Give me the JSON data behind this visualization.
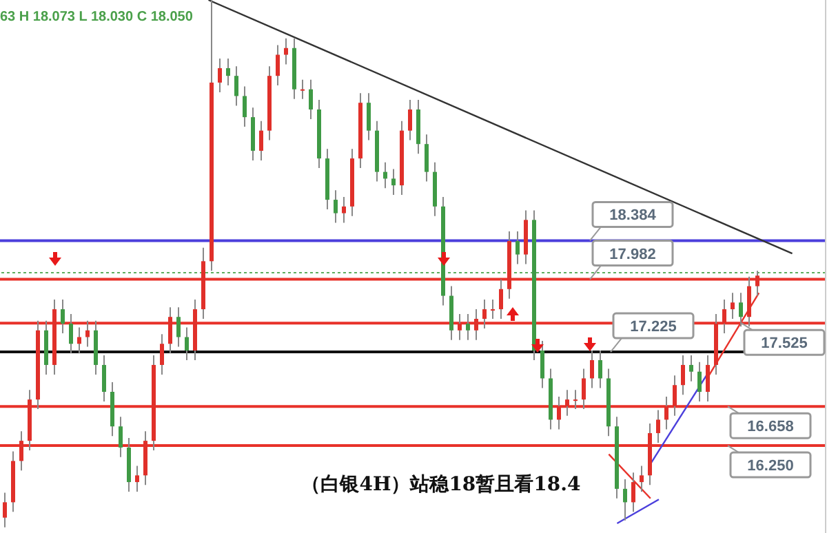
{
  "chart_data": {
    "type": "candlestick",
    "tick_labels": false,
    "ylim": [
      15.34,
      20.89
    ],
    "annotations": [
      "63 H 18.073 L 18.030 C 18.050",
      "（白银4H）站稳18暂且看18.4"
    ],
    "categories": [
      null,
      null,
      null,
      null,
      null,
      null,
      null,
      null,
      null,
      null,
      null,
      null,
      null,
      null,
      null,
      null,
      null,
      null,
      null,
      null,
      null,
      null,
      null,
      null,
      null,
      null,
      null,
      null,
      null,
      null,
      null,
      null,
      null,
      null,
      null,
      null,
      null,
      null,
      null,
      null,
      null,
      null,
      null,
      null,
      null,
      null,
      null,
      null,
      null,
      null,
      null,
      null,
      null,
      null,
      null,
      null,
      null,
      null,
      null,
      null,
      null,
      null,
      null,
      null,
      null,
      null,
      null,
      null,
      null,
      null,
      null,
      null,
      null,
      null,
      null,
      null,
      null,
      null,
      null,
      null,
      null,
      null,
      null,
      null,
      null,
      null,
      null,
      null,
      null,
      null,
      null,
      null,
      null,
      null,
      null,
      null,
      null,
      null,
      null,
      null
    ],
    "ohlc": [
      [
        15.5,
        15.76,
        15.4,
        15.66
      ],
      [
        15.66,
        16.19,
        15.56,
        16.09
      ],
      [
        16.09,
        16.4,
        15.99,
        16.3
      ],
      [
        16.3,
        16.83,
        16.2,
        16.73
      ],
      [
        16.73,
        17.55,
        16.63,
        17.45
      ],
      [
        17.45,
        17.55,
        16.99,
        17.09
      ],
      [
        17.09,
        17.77,
        16.99,
        17.67
      ],
      [
        17.67,
        17.77,
        17.42,
        17.52
      ],
      [
        17.52,
        17.62,
        17.21,
        17.31
      ],
      [
        17.31,
        17.48,
        17.21,
        17.38
      ],
      [
        17.38,
        17.55,
        17.28,
        17.45
      ],
      [
        17.45,
        17.55,
        16.99,
        17.09
      ],
      [
        17.09,
        17.19,
        16.71,
        16.81
      ],
      [
        16.81,
        16.91,
        16.35,
        16.45
      ],
      [
        16.45,
        16.55,
        16.13,
        16.23
      ],
      [
        16.23,
        16.33,
        15.77,
        15.87
      ],
      [
        15.87,
        16.04,
        15.77,
        15.94
      ],
      [
        15.94,
        16.4,
        15.84,
        16.3
      ],
      [
        16.3,
        17.19,
        16.2,
        17.09
      ],
      [
        17.09,
        17.41,
        16.99,
        17.31
      ],
      [
        17.31,
        17.69,
        17.21,
        17.59
      ],
      [
        17.59,
        17.69,
        17.28,
        17.38
      ],
      [
        17.38,
        17.48,
        17.14,
        17.24
      ],
      [
        17.24,
        17.77,
        17.14,
        17.67
      ],
      [
        17.67,
        18.31,
        17.57,
        18.17
      ],
      [
        18.17,
        20.89,
        18.07,
        20.03
      ],
      [
        20.03,
        20.28,
        19.93,
        20.18
      ],
      [
        20.18,
        20.28,
        20.0,
        20.1
      ],
      [
        20.1,
        20.2,
        19.79,
        19.89
      ],
      [
        19.89,
        19.99,
        19.57,
        19.67
      ],
      [
        19.67,
        19.77,
        19.22,
        19.32
      ],
      [
        19.32,
        19.63,
        19.22,
        19.53
      ],
      [
        19.53,
        20.2,
        19.43,
        20.1
      ],
      [
        20.1,
        20.42,
        20.0,
        20.32
      ],
      [
        20.32,
        20.49,
        20.22,
        20.39
      ],
      [
        20.39,
        20.49,
        19.86,
        19.96
      ],
      [
        19.96,
        20.06,
        19.86,
        19.96
      ],
      [
        19.96,
        20.06,
        19.65,
        19.75
      ],
      [
        19.75,
        19.85,
        19.14,
        19.24
      ],
      [
        19.24,
        19.34,
        18.71,
        18.81
      ],
      [
        18.81,
        18.91,
        18.57,
        18.67
      ],
      [
        18.67,
        18.84,
        18.57,
        18.74
      ],
      [
        18.74,
        19.34,
        18.64,
        19.24
      ],
      [
        19.24,
        19.92,
        19.14,
        19.82
      ],
      [
        19.82,
        19.92,
        19.43,
        19.53
      ],
      [
        19.53,
        19.63,
        19.0,
        19.1
      ],
      [
        19.1,
        19.2,
        18.93,
        19.03
      ],
      [
        19.03,
        19.13,
        18.86,
        18.96
      ],
      [
        18.96,
        19.63,
        18.86,
        19.53
      ],
      [
        19.53,
        19.85,
        19.43,
        19.75
      ],
      [
        19.75,
        19.85,
        19.29,
        19.39
      ],
      [
        19.39,
        19.49,
        19.0,
        19.1
      ],
      [
        19.1,
        19.2,
        18.64,
        18.74
      ],
      [
        18.74,
        18.84,
        17.71,
        17.81
      ],
      [
        17.81,
        17.91,
        17.35,
        17.45
      ],
      [
        17.45,
        17.62,
        17.35,
        17.52
      ],
      [
        17.52,
        17.62,
        17.35,
        17.45
      ],
      [
        17.45,
        17.67,
        17.35,
        17.57
      ],
      [
        17.57,
        17.77,
        17.47,
        17.67
      ],
      [
        17.67,
        17.77,
        17.57,
        17.67
      ],
      [
        17.67,
        17.98,
        17.57,
        17.88
      ],
      [
        17.88,
        18.48,
        17.78,
        18.38
      ],
      [
        18.38,
        18.48,
        18.14,
        18.24
      ],
      [
        18.24,
        18.7,
        18.14,
        18.6
      ],
      [
        18.6,
        18.7,
        17.14,
        17.24
      ],
      [
        17.24,
        17.34,
        16.85,
        16.95
      ],
      [
        16.95,
        17.05,
        16.42,
        16.52
      ],
      [
        16.52,
        16.76,
        16.42,
        16.66
      ],
      [
        16.66,
        16.83,
        16.56,
        16.73
      ],
      [
        16.73,
        16.83,
        16.63,
        16.73
      ],
      [
        16.73,
        17.05,
        16.63,
        16.95
      ],
      [
        16.95,
        17.24,
        16.85,
        17.14
      ],
      [
        17.14,
        17.24,
        16.85,
        16.95
      ],
      [
        16.95,
        17.05,
        16.35,
        16.45
      ],
      [
        16.45,
        16.55,
        15.7,
        15.8
      ],
      [
        15.8,
        15.9,
        15.47,
        15.66
      ],
      [
        15.66,
        15.97,
        15.56,
        15.87
      ],
      [
        15.87,
        16.04,
        15.77,
        15.94
      ],
      [
        15.94,
        16.48,
        15.84,
        16.38
      ],
      [
        16.38,
        16.62,
        16.28,
        16.52
      ],
      [
        16.52,
        16.76,
        16.42,
        16.66
      ],
      [
        16.66,
        16.98,
        16.56,
        16.88
      ],
      [
        16.88,
        17.19,
        16.78,
        17.09
      ],
      [
        17.09,
        17.19,
        16.92,
        17.02
      ],
      [
        17.02,
        17.12,
        16.71,
        16.81
      ],
      [
        16.81,
        17.19,
        16.71,
        17.09
      ],
      [
        17.09,
        17.62,
        16.99,
        17.52
      ],
      [
        17.52,
        17.77,
        17.42,
        17.67
      ],
      [
        17.67,
        17.84,
        17.57,
        17.74
      ],
      [
        17.74,
        17.84,
        17.49,
        17.59
      ],
      [
        17.59,
        18.01,
        17.49,
        17.91
      ],
      [
        17.91,
        18.07,
        17.81,
        18.02
      ],
      null,
      null,
      null,
      null,
      null,
      null,
      null,
      null
    ],
    "series": [
      {
        "type": "line",
        "color": "#333333",
        "values": [
          null,
          null,
          null,
          null,
          null,
          null,
          null,
          null,
          null,
          null,
          null,
          null,
          null,
          null,
          null,
          null,
          null,
          null,
          null,
          null,
          null,
          null,
          null,
          null,
          null,
          20.89,
          null,
          null,
          null,
          null,
          null,
          null,
          null,
          null,
          null,
          null,
          null,
          null,
          null,
          null,
          null,
          null,
          null,
          null,
          null,
          null,
          null,
          null,
          null,
          null,
          null,
          null,
          null,
          null,
          null,
          null,
          null,
          null,
          null,
          null,
          null,
          null,
          null,
          null,
          null,
          null,
          null,
          null,
          null,
          null,
          null,
          null,
          null,
          null,
          null,
          null,
          null,
          null,
          null,
          null,
          null,
          null,
          null,
          null,
          null,
          null,
          null,
          null,
          null,
          null,
          null,
          null,
          null,
          null,
          null,
          18.25,
          null,
          null,
          null,
          null
        ]
      },
      {
        "type": "line",
        "color": "#4b3fdc",
        "values": [
          null,
          null,
          null,
          null,
          null,
          null,
          null,
          null,
          null,
          null,
          null,
          null,
          null,
          null,
          null,
          null,
          null,
          null,
          null,
          null,
          null,
          null,
          null,
          null,
          null,
          null,
          null,
          null,
          null,
          null,
          null,
          null,
          null,
          null,
          null,
          null,
          null,
          null,
          null,
          null,
          null,
          null,
          null,
          null,
          null,
          null,
          null,
          null,
          null,
          null,
          null,
          null,
          null,
          null,
          null,
          null,
          null,
          null,
          null,
          null,
          null,
          null,
          null,
          null,
          null,
          null,
          null,
          null,
          null,
          null,
          null,
          null,
          null,
          null,
          15.44,
          null,
          null,
          null,
          null,
          15.69,
          null,
          null,
          null,
          null,
          null,
          null,
          null,
          null,
          null,
          null,
          null,
          null,
          null,
          null,
          null,
          null,
          null,
          null,
          null,
          null
        ]
      },
      {
        "type": "line",
        "color": "#4b3fdc",
        "values": [
          null,
          null,
          null,
          null,
          null,
          null,
          null,
          null,
          null,
          null,
          null,
          null,
          null,
          null,
          null,
          null,
          null,
          null,
          null,
          null,
          null,
          null,
          null,
          null,
          null,
          null,
          null,
          null,
          null,
          null,
          null,
          null,
          null,
          null,
          null,
          null,
          null,
          null,
          null,
          null,
          null,
          null,
          null,
          null,
          null,
          null,
          null,
          null,
          null,
          null,
          null,
          null,
          null,
          null,
          null,
          null,
          null,
          null,
          null,
          null,
          null,
          null,
          null,
          null,
          null,
          null,
          null,
          null,
          null,
          null,
          null,
          null,
          null,
          null,
          null,
          null,
          null,
          null,
          16.06,
          null,
          null,
          null,
          null,
          null,
          null,
          17.02,
          null,
          null,
          null,
          null,
          null,
          null,
          null,
          null,
          null,
          null,
          null,
          null,
          null,
          null
        ]
      },
      {
        "type": "line",
        "color": "#e8322a",
        "values": [
          null,
          null,
          null,
          null,
          null,
          null,
          null,
          null,
          null,
          null,
          null,
          null,
          null,
          null,
          null,
          null,
          null,
          null,
          null,
          null,
          null,
          null,
          null,
          null,
          null,
          null,
          null,
          null,
          null,
          null,
          null,
          null,
          null,
          null,
          null,
          null,
          null,
          null,
          null,
          null,
          null,
          null,
          null,
          null,
          null,
          null,
          null,
          null,
          null,
          null,
          null,
          null,
          null,
          null,
          null,
          null,
          null,
          null,
          null,
          null,
          null,
          null,
          null,
          null,
          null,
          null,
          null,
          null,
          null,
          null,
          null,
          null,
          null,
          null,
          null,
          null,
          null,
          null,
          null,
          null,
          null,
          null,
          null,
          null,
          null,
          16.98,
          null,
          null,
          null,
          null,
          null,
          17.84,
          null,
          null,
          null,
          null,
          null,
          null,
          null,
          null
        ]
      },
      {
        "type": "line",
        "color": "#e8322a",
        "values": [
          null,
          null,
          null,
          null,
          null,
          null,
          null,
          null,
          null,
          null,
          null,
          null,
          null,
          null,
          null,
          null,
          null,
          null,
          null,
          null,
          null,
          null,
          null,
          null,
          null,
          null,
          null,
          null,
          null,
          null,
          null,
          null,
          null,
          null,
          null,
          null,
          null,
          null,
          null,
          null,
          null,
          null,
          null,
          null,
          null,
          null,
          null,
          null,
          null,
          null,
          null,
          null,
          null,
          null,
          null,
          null,
          null,
          null,
          null,
          null,
          null,
          null,
          null,
          null,
          null,
          null,
          null,
          null,
          null,
          null,
          null,
          null,
          null,
          16.16,
          null,
          null,
          null,
          null,
          15.7,
          null,
          null,
          null,
          null,
          null,
          null,
          null,
          null,
          null,
          null,
          null,
          null,
          null,
          null,
          null,
          null,
          null,
          null,
          null,
          null,
          null
        ]
      }
    ],
    "ref_lines": [
      {
        "axis": "y",
        "value": 18.384,
        "label": "18.384",
        "color": "#4b3fdc"
      },
      {
        "axis": "y",
        "value": 17.982,
        "label": "17.982",
        "color": "#e8322a"
      },
      {
        "axis": "y",
        "value": 17.225,
        "label": "17.225",
        "color": "#111111"
      },
      {
        "axis": "y",
        "value": 16.658,
        "label": "16.658",
        "color": "#e8322a"
      },
      {
        "axis": "y",
        "value": 16.25,
        "label": "16.250",
        "color": "#e8322a"
      },
      {
        "axis": "y",
        "value": 17.525,
        "label": "17.525",
        "color": "#e8322a"
      },
      {
        "axis": "y",
        "value": 18.05,
        "color": "#5fae5f",
        "line_style": "dotted"
      }
    ]
  }
}
